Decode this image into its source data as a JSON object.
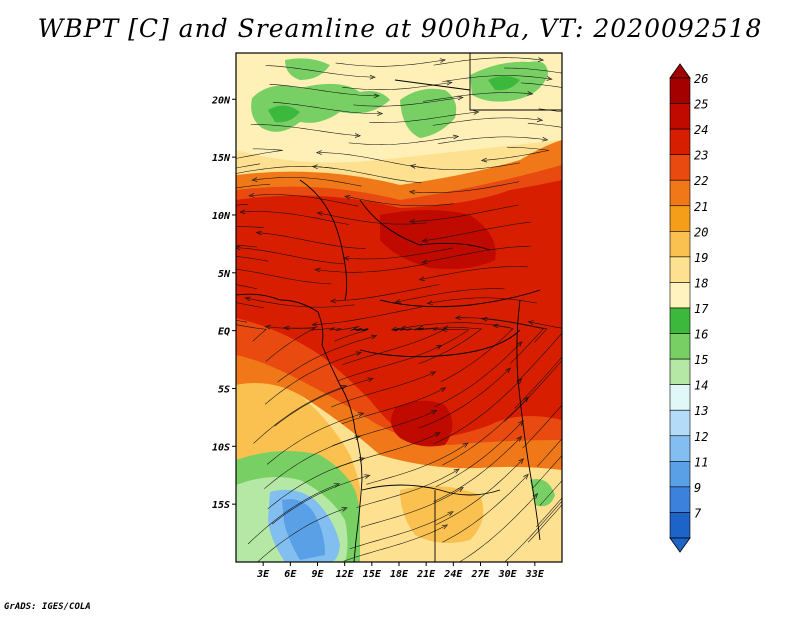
{
  "title": "WBPT [C] and Sreamline at 900hPa, VT: 2020092518",
  "credit": "GrADS: IGES/COLA",
  "map": {
    "lon_range": [
      0,
      36
    ],
    "lat_range": [
      -20,
      24
    ],
    "x_ticks": [
      {
        "lon": 3,
        "label": "3E"
      },
      {
        "lon": 6,
        "label": "6E"
      },
      {
        "lon": 9,
        "label": "9E"
      },
      {
        "lon": 12,
        "label": "12E"
      },
      {
        "lon": 15,
        "label": "15E"
      },
      {
        "lon": 18,
        "label": "18E"
      },
      {
        "lon": 21,
        "label": "21E"
      },
      {
        "lon": 24,
        "label": "24E"
      },
      {
        "lon": 27,
        "label": "27E"
      },
      {
        "lon": 30,
        "label": "30E"
      },
      {
        "lon": 33,
        "label": "33E"
      }
    ],
    "y_ticks": [
      {
        "lat": 20,
        "label": "20N"
      },
      {
        "lat": 15,
        "label": "15N"
      },
      {
        "lat": 10,
        "label": "10N"
      },
      {
        "lat": 5,
        "label": "5N"
      },
      {
        "lat": 0,
        "label": "EQ"
      },
      {
        "lat": -5,
        "label": "5S"
      },
      {
        "lat": -10,
        "label": "10S"
      },
      {
        "lat": -15,
        "label": "15S"
      }
    ]
  },
  "colorbar": {
    "levels": [
      {
        "label": "26",
        "color": "#a50000"
      },
      {
        "label": "25",
        "color": "#c00a00"
      },
      {
        "label": "24",
        "color": "#d81e00"
      },
      {
        "label": "23",
        "color": "#e84a10"
      },
      {
        "label": "22",
        "color": "#f07818"
      },
      {
        "label": "21",
        "color": "#f59e1a"
      },
      {
        "label": "20",
        "color": "#fac050"
      },
      {
        "label": "19",
        "color": "#fde090"
      },
      {
        "label": "18",
        "color": "#fff4c0"
      },
      {
        "label": "17",
        "color": "#3cb83c"
      },
      {
        "label": "16",
        "color": "#78d064"
      },
      {
        "label": "15",
        "color": "#b4e8a4"
      },
      {
        "label": "14",
        "color": "#e0f8f8"
      },
      {
        "label": "13",
        "color": "#b4dcf8"
      },
      {
        "label": "12",
        "color": "#82bef0"
      },
      {
        "label": "11",
        "color": "#5aa0e6"
      },
      {
        "label": "9",
        "color": "#3c82dc"
      },
      {
        "label": "7",
        "color": "#1e64c8"
      }
    ]
  }
}
